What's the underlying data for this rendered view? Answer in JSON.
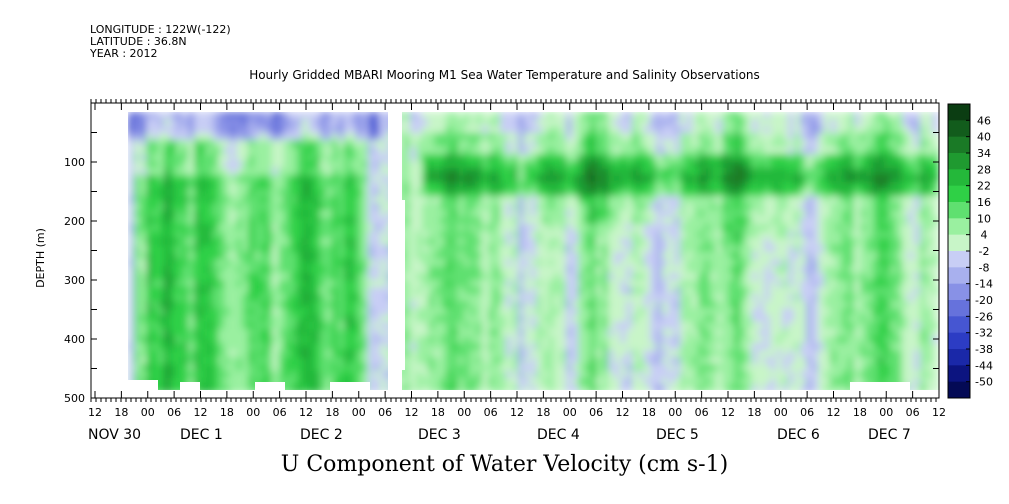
{
  "header": {
    "longitude": "LONGITUDE : 122W(-122)",
    "latitude": "LATITUDE : 36.8N",
    "year": "YEAR : 2012"
  },
  "chart_data": {
    "type": "heatmap",
    "title": "Hourly Gridded MBARI Mooring M1 Sea Water Temperature and Salinity Observations",
    "xlabel": "U Component of Water Velocity (cm s-1)",
    "ylabel": "DEPTH (m)",
    "y_ticks": [
      100,
      200,
      300,
      400,
      500
    ],
    "ylim": [
      500,
      0
    ],
    "x_hour_ticks": [
      "12",
      "18",
      "00",
      "06",
      "12",
      "18",
      "00",
      "06",
      "12",
      "18",
      "00",
      "06",
      "12",
      "18",
      "00",
      "06",
      "12",
      "18",
      "00",
      "06",
      "12",
      "18",
      "00",
      "06",
      "12",
      "18",
      "00",
      "06",
      "12",
      "18",
      "00",
      "06",
      "12"
    ],
    "x_day_labels": [
      "NOV 30",
      "DEC  1",
      "DEC  2",
      "DEC  3",
      "DEC  4",
      "DEC  5",
      "DEC  6",
      "DEC  7"
    ],
    "colorbar": {
      "levels": [
        "46",
        "40",
        "34",
        "28",
        "22",
        "16",
        "10",
        "4",
        "-2",
        "-8",
        "-14",
        "-20",
        "-26",
        "-32",
        "-38",
        "-44",
        "-50"
      ],
      "colors": [
        "#0b3d12",
        "#125c1c",
        "#1a7a26",
        "#1f9a30",
        "#24b83a",
        "#2fd046",
        "#5fe070",
        "#9af0a0",
        "#c8f5c8",
        "#c8cef5",
        "#a8b0ee",
        "#8891e6",
        "#6672dc",
        "#4656d2",
        "#2c3cc4",
        "#1a28a8",
        "#0c1480",
        "#040a55"
      ]
    }
  }
}
